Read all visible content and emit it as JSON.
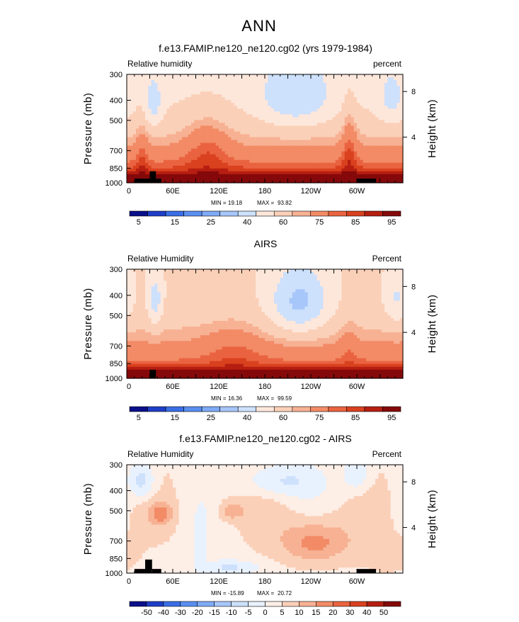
{
  "figure": {
    "title": "ANN"
  },
  "colors": {
    "rh": [
      "#0a0f8a",
      "#1e3ec8",
      "#3a6ee6",
      "#5a8ef0",
      "#7eaaf6",
      "#a7c6fa",
      "#cde0fc",
      "#fde7db",
      "#fbd0b8",
      "#f7b193",
      "#f28b66",
      "#ea6340",
      "#d9411f",
      "#b51e10",
      "#85090a"
    ],
    "diff": [
      "#0a0f8a",
      "#1e3ec8",
      "#3a6ee6",
      "#5a8ef0",
      "#7eaaf6",
      "#a7c6fa",
      "#cde0fc",
      "#e8f1fe",
      "#fdeee6",
      "#fbd0b8",
      "#f7b193",
      "#f28b66",
      "#ea6340",
      "#d9411f",
      "#b51e10",
      "#85090a"
    ]
  },
  "chart_data": [
    {
      "type": "heatmap",
      "title": "f.e13.FAMIP.ne120_ne120.cg02 (yrs 1979-1984)",
      "left_label": "Relative humidity",
      "right_label": "percent",
      "ylabel": "Pressure (mb)",
      "y2label": "Height (km)",
      "x_ticks": [
        "0",
        "60E",
        "120E",
        "180",
        "120W",
        "60W"
      ],
      "x_tick_values": [
        0,
        60,
        120,
        180,
        240,
        300
      ],
      "xlim": [
        0,
        360
      ],
      "y_ticks": [
        "300",
        "400",
        "500",
        "700",
        "850",
        "1000"
      ],
      "y_tick_values": [
        300,
        400,
        500,
        700,
        850,
        1000
      ],
      "ylim": [
        1000,
        300
      ],
      "y2_ticks": [
        "8",
        "4"
      ],
      "y2_tick_values": [
        8,
        4
      ],
      "min_label": "MIN =",
      "min_value": "19.18",
      "max_label": "MAX =",
      "max_value": "93.82",
      "colorbar_labels": [
        "5",
        "15",
        "25",
        "40",
        "60",
        "75",
        "85",
        "95"
      ],
      "levels": [
        5,
        10,
        15,
        20,
        25,
        30,
        40,
        50,
        60,
        65,
        75,
        80,
        85,
        90,
        95
      ],
      "terrain": [
        [
          10,
          30,
          1000,
          955
        ],
        [
          30,
          38,
          1000,
          880
        ],
        [
          38,
          45,
          1000,
          955
        ],
        [
          300,
          325,
          1000,
          955
        ]
      ]
    },
    {
      "type": "heatmap",
      "title": "AIRS",
      "left_label": "Relative Humidity",
      "right_label": "Percent",
      "ylabel": "Pressure (mb)",
      "y2label": "Height (km)",
      "x_ticks": [
        "0",
        "60E",
        "120E",
        "180",
        "120W",
        "60W"
      ],
      "x_tick_values": [
        0,
        60,
        120,
        180,
        240,
        300
      ],
      "xlim": [
        0,
        360
      ],
      "y_ticks": [
        "300",
        "400",
        "500",
        "700",
        "850",
        "1000"
      ],
      "y_tick_values": [
        300,
        400,
        500,
        700,
        850,
        1000
      ],
      "ylim": [
        1000,
        300
      ],
      "y2_ticks": [
        "8",
        "4"
      ],
      "y2_tick_values": [
        8,
        4
      ],
      "min_label": "MIN =",
      "min_value": "16.36",
      "max_label": "MAX =",
      "max_value": "99.59",
      "colorbar_labels": [
        "5",
        "15",
        "25",
        "40",
        "60",
        "75",
        "85",
        "95"
      ],
      "levels": [
        5,
        10,
        15,
        20,
        25,
        30,
        40,
        50,
        60,
        65,
        75,
        80,
        85,
        90,
        95
      ],
      "terrain": [
        [
          30,
          38,
          1000,
          910
        ]
      ]
    },
    {
      "type": "heatmap",
      "title": "f.e13.FAMIP.ne120_ne120.cg02 - AIRS",
      "left_label": "Relative Humidity",
      "right_label": "Percent",
      "ylabel": "Pressure (mb)",
      "y2label": "Height (km)",
      "x_ticks": [
        "0",
        "60E",
        "120E",
        "180",
        "120W",
        "60W"
      ],
      "x_tick_values": [
        0,
        60,
        120,
        180,
        240,
        300
      ],
      "xlim": [
        0,
        360
      ],
      "y_ticks": [
        "300",
        "400",
        "500",
        "700",
        "850",
        "1000"
      ],
      "y_tick_values": [
        300,
        400,
        500,
        700,
        850,
        1000
      ],
      "ylim": [
        1000,
        300
      ],
      "y2_ticks": [
        "8",
        "4"
      ],
      "y2_tick_values": [
        8,
        4
      ],
      "min_label": "MIN =",
      "min_value": "-15.89",
      "max_label": "MAX =",
      "max_value": "20.72",
      "colorbar_labels": [
        "-50",
        "-40",
        "-30",
        "-20",
        "-15",
        "-10",
        "-5",
        "0",
        "5",
        "10",
        "15",
        "20",
        "30",
        "40",
        "50"
      ],
      "levels": [
        -50,
        -40,
        -30,
        -20,
        -15,
        -10,
        -5,
        0,
        5,
        10,
        15,
        20,
        30,
        40,
        50
      ],
      "terrain": [
        [
          10,
          30,
          1000,
          955
        ],
        [
          24,
          33,
          1000,
          860
        ],
        [
          33,
          45,
          1000,
          955
        ],
        [
          300,
          325,
          1000,
          955
        ]
      ]
    }
  ]
}
